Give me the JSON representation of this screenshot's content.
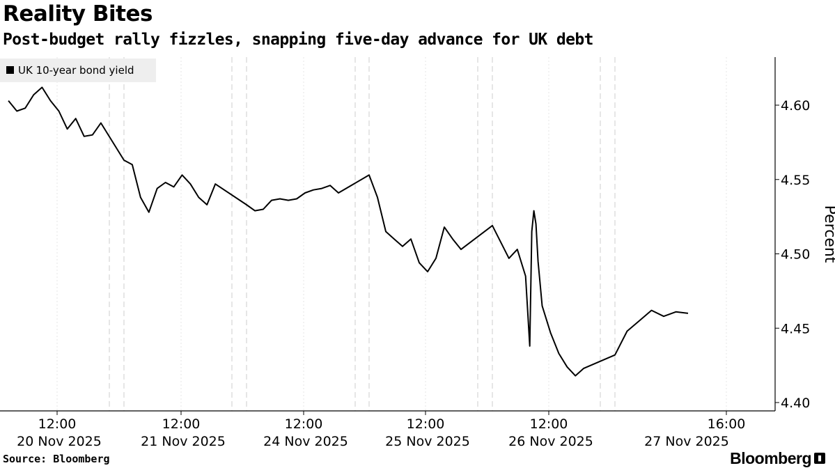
{
  "header": {
    "title": "Reality Bites",
    "subtitle": "Post-budget rally fizzles, snapping five-day advance for UK debt"
  },
  "footer": {
    "source": "Source: Bloomberg",
    "brand": "Bloomberg"
  },
  "colors": {
    "line": "#000000",
    "grid": "#cccccc",
    "legend_bg": "#eeeeee"
  },
  "chart_data": {
    "type": "line",
    "title": "Reality Bites",
    "subtitle": "Post-budget rally fizzles, snapping five-day advance for UK debt",
    "ylabel": "Percent",
    "ylim": [
      4.4,
      4.63
    ],
    "yticks": [
      "4.40",
      "4.45",
      "4.50",
      "4.55",
      "4.60"
    ],
    "x_tick_labels": [
      {
        "time": "12:00",
        "date": "20 Nov 2025"
      },
      {
        "time": "12:00",
        "date": "21 Nov 2025"
      },
      {
        "time": "12:00",
        "date": "24 Nov 2025"
      },
      {
        "time": "12:00",
        "date": "25 Nov 2025"
      },
      {
        "time": "12:00",
        "date": "26 Nov 2025"
      },
      {
        "time": "16:00",
        "date": "27 Nov 2025"
      }
    ],
    "grid": true,
    "legend_position": "top-left",
    "series": [
      {
        "name": "UK 10-year bond yield",
        "x": [
          "2025-11-20 08:00",
          "2025-11-20 09:00",
          "2025-11-20 10:00",
          "2025-11-20 11:00",
          "2025-11-20 12:00",
          "2025-11-20 13:00",
          "2025-11-20 14:00",
          "2025-11-20 15:00",
          "2025-11-20 16:00",
          "2025-11-20 17:00",
          "2025-11-20 18:00",
          "2025-11-20 19:00",
          "2025-11-21 07:00",
          "2025-11-21 08:00",
          "2025-11-21 09:00",
          "2025-11-21 10:00",
          "2025-11-21 11:00",
          "2025-11-21 12:00",
          "2025-11-21 13:00",
          "2025-11-21 14:00",
          "2025-11-21 15:00",
          "2025-11-21 16:00",
          "2025-11-21 17:00",
          "2025-11-21 18:00",
          "2025-11-24 07:00",
          "2025-11-24 08:00",
          "2025-11-24 09:00",
          "2025-11-24 10:00",
          "2025-11-24 11:00",
          "2025-11-24 12:00",
          "2025-11-24 13:00",
          "2025-11-24 14:00",
          "2025-11-24 15:00",
          "2025-11-24 16:00",
          "2025-11-24 17:00",
          "2025-11-24 18:00",
          "2025-11-25 07:00",
          "2025-11-25 08:00",
          "2025-11-25 09:00",
          "2025-11-25 10:00",
          "2025-11-25 11:00",
          "2025-11-25 12:00",
          "2025-11-25 13:00",
          "2025-11-25 14:00",
          "2025-11-25 15:00",
          "2025-11-25 16:00",
          "2025-11-25 17:00",
          "2025-11-25 18:00",
          "2025-11-26 07:00",
          "2025-11-26 08:00",
          "2025-11-26 09:00",
          "2025-11-26 10:00",
          "2025-11-26 11:00",
          "2025-11-26 11:30",
          "2025-11-26 11:45",
          "2025-11-26 12:00",
          "2025-11-26 12:15",
          "2025-11-26 12:30",
          "2025-11-26 13:00",
          "2025-11-26 14:00",
          "2025-11-26 15:00",
          "2025-11-26 16:00",
          "2025-11-26 17:00",
          "2025-11-26 18:00",
          "2025-11-27 07:00",
          "2025-11-27 08:00",
          "2025-11-27 09:00",
          "2025-11-27 10:00",
          "2025-11-27 11:00",
          "2025-11-27 12:00",
          "2025-11-27 13:00"
        ],
        "y": [
          4.603,
          4.596,
          4.598,
          4.607,
          4.612,
          4.603,
          4.596,
          4.584,
          4.591,
          4.579,
          4.58,
          4.588,
          4.563,
          4.56,
          4.538,
          4.528,
          4.544,
          4.548,
          4.545,
          4.553,
          4.547,
          4.538,
          4.533,
          4.547,
          4.533,
          4.529,
          4.53,
          4.536,
          4.537,
          4.536,
          4.537,
          4.541,
          4.543,
          4.544,
          4.546,
          4.541,
          4.553,
          4.538,
          4.515,
          4.51,
          4.505,
          4.51,
          4.494,
          4.488,
          4.497,
          4.518,
          4.51,
          4.503,
          4.519,
          4.508,
          4.497,
          4.503,
          4.485,
          4.438,
          4.515,
          4.529,
          4.52,
          4.495,
          4.465,
          4.447,
          4.433,
          4.424,
          4.418,
          4.423,
          4.432,
          4.448,
          4.455,
          4.462,
          4.458,
          4.461,
          4.46
        ]
      }
    ]
  }
}
